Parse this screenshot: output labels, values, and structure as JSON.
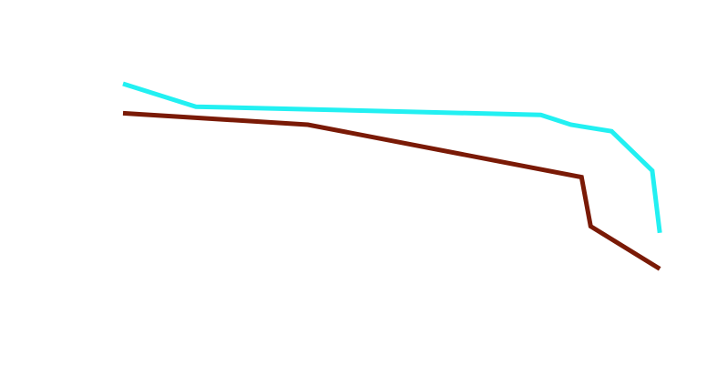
{
  "chart_data": {
    "type": "line",
    "title": "",
    "xlabel": "",
    "ylabel": "",
    "xlim": [
      0,
      100
    ],
    "ylim": [
      0,
      100
    ],
    "grid": false,
    "axes_visible": false,
    "legend": "none",
    "series": [
      {
        "color": "#22f0f2",
        "x": [
          0,
          13.6,
          78.0,
          83.6,
          91.2,
          98.8,
          100.2
        ],
        "y": [
          80,
          73,
          70.5,
          67.5,
          65.5,
          53.5,
          34.5
        ]
      },
      {
        "color": "#7a1a06",
        "x": [
          0,
          34.5,
          85.6,
          87.3,
          100.2
        ],
        "y": [
          71,
          67.5,
          51.5,
          36.5,
          23.5
        ]
      }
    ]
  }
}
